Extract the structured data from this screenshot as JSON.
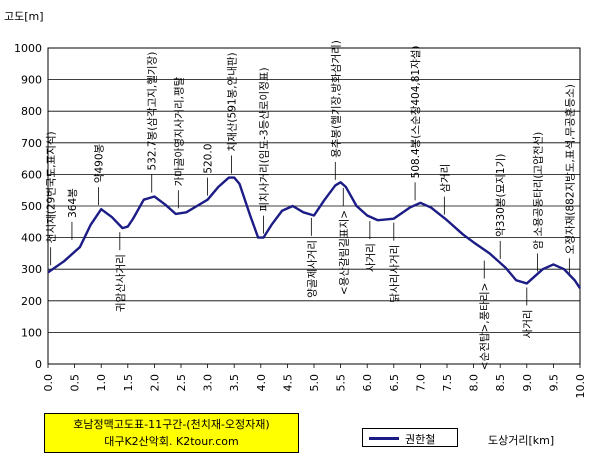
{
  "chart_data": {
    "type": "line",
    "title_lines": [
      "호남정맥고도표-11구간-(천치재-오정자재)",
      "대구K2산악회. K2tour.com"
    ],
    "ylabel": "고도[m]",
    "xlabel": "도상거리[km]",
    "xlim": [
      0,
      10
    ],
    "ylim": [
      0,
      1000
    ],
    "x_ticks": [
      "0.0",
      "0.5",
      "1.0",
      "1.5",
      "2.0",
      "2.5",
      "3.0",
      "3.5",
      "4.0",
      "4.5",
      "5.0",
      "5.5",
      "6.0",
      "6.5",
      "7.0",
      "7.5",
      "8.0",
      "8.5",
      "9.0",
      "9.5",
      "10.0"
    ],
    "y_ticks": [
      "0",
      "100",
      "200",
      "300",
      "400",
      "500",
      "600",
      "700",
      "800",
      "900",
      "1000"
    ],
    "grid": true,
    "legend_position": "bottom",
    "series": [
      {
        "name": "권한철",
        "color": "#1c1c86",
        "x": [
          0.0,
          0.3,
          0.6,
          0.8,
          1.0,
          1.2,
          1.4,
          1.5,
          1.6,
          1.8,
          2.0,
          2.2,
          2.4,
          2.6,
          2.8,
          3.0,
          3.2,
          3.4,
          3.5,
          3.6,
          3.8,
          3.95,
          4.05,
          4.2,
          4.4,
          4.6,
          4.8,
          5.0,
          5.2,
          5.4,
          5.5,
          5.6,
          5.8,
          6.0,
          6.2,
          6.5,
          6.8,
          7.0,
          7.2,
          7.5,
          7.8,
          8.0,
          8.3,
          8.6,
          8.8,
          9.0,
          9.1,
          9.3,
          9.5,
          9.7,
          9.9,
          10.0
        ],
        "y": [
          290,
          325,
          370,
          440,
          490,
          465,
          430,
          435,
          460,
          520,
          530,
          505,
          475,
          480,
          500,
          520,
          560,
          590,
          590,
          570,
          470,
          400,
          400,
          440,
          485,
          500,
          480,
          470,
          520,
          565,
          575,
          560,
          500,
          470,
          455,
          460,
          495,
          510,
          495,
          455,
          410,
          385,
          350,
          305,
          265,
          255,
          270,
          300,
          315,
          300,
          265,
          240
        ]
      }
    ],
    "annotations": [
      {
        "x": 0.05,
        "y": 300,
        "text": "천치재(29번국도,표지석)",
        "side": "above"
      },
      {
        "x": 0.45,
        "y": 380,
        "text": "364봉",
        "side": "above"
      },
      {
        "x": 0.95,
        "y": 490,
        "text": "약490봉",
        "side": "above"
      },
      {
        "x": 1.35,
        "y": 430,
        "text": "귀암산사거리",
        "side": "below"
      },
      {
        "x": 1.95,
        "y": 530,
        "text": "532.7봉(삼각고지,헬기장)",
        "side": "above"
      },
      {
        "x": 2.45,
        "y": 480,
        "text": "가마골아영지사거리,평탈",
        "side": "above"
      },
      {
        "x": 3.0,
        "y": 520,
        "text": "520.0",
        "side": "above"
      },
      {
        "x": 3.45,
        "y": 590,
        "text": "치재산(591봉,안내판)",
        "side": "above"
      },
      {
        "x": 4.05,
        "y": 400,
        "text": "피치사거리(임도-3등산로이정표)",
        "side": "above"
      },
      {
        "x": 4.95,
        "y": 475,
        "text": "양골제사거리",
        "side": "below"
      },
      {
        "x": 5.4,
        "y": 570,
        "text": "용추봉(헬기장,방화삼거리)",
        "side": "above"
      },
      {
        "x": 5.55,
        "y": 570,
        "text": "<용산갈림길표지>",
        "side": "below"
      },
      {
        "x": 6.05,
        "y": 465,
        "text": "사거리",
        "side": "below"
      },
      {
        "x": 6.5,
        "y": 460,
        "text": "닭사리사거리",
        "side": "below"
      },
      {
        "x": 6.9,
        "y": 505,
        "text": "508.4봉(스순창404,81쟈설)",
        "side": "above"
      },
      {
        "x": 7.45,
        "y": 460,
        "text": "삼거리",
        "side": "above"
      },
      {
        "x": 8.2,
        "y": 340,
        "text": "<순전탑>,풍타리>",
        "side": "below"
      },
      {
        "x": 8.5,
        "y": 320,
        "text": "약330봉(묘지1기)",
        "side": "above"
      },
      {
        "x": 9.0,
        "y": 255,
        "text": "사거리",
        "side": "below"
      },
      {
        "x": 9.2,
        "y": 280,
        "text": "암 소용공동타리(고압전선)",
        "side": "above"
      },
      {
        "x": 9.8,
        "y": 265,
        "text": "오정자재(882지방도,표석,무공훈등소)",
        "side": "above"
      }
    ]
  }
}
